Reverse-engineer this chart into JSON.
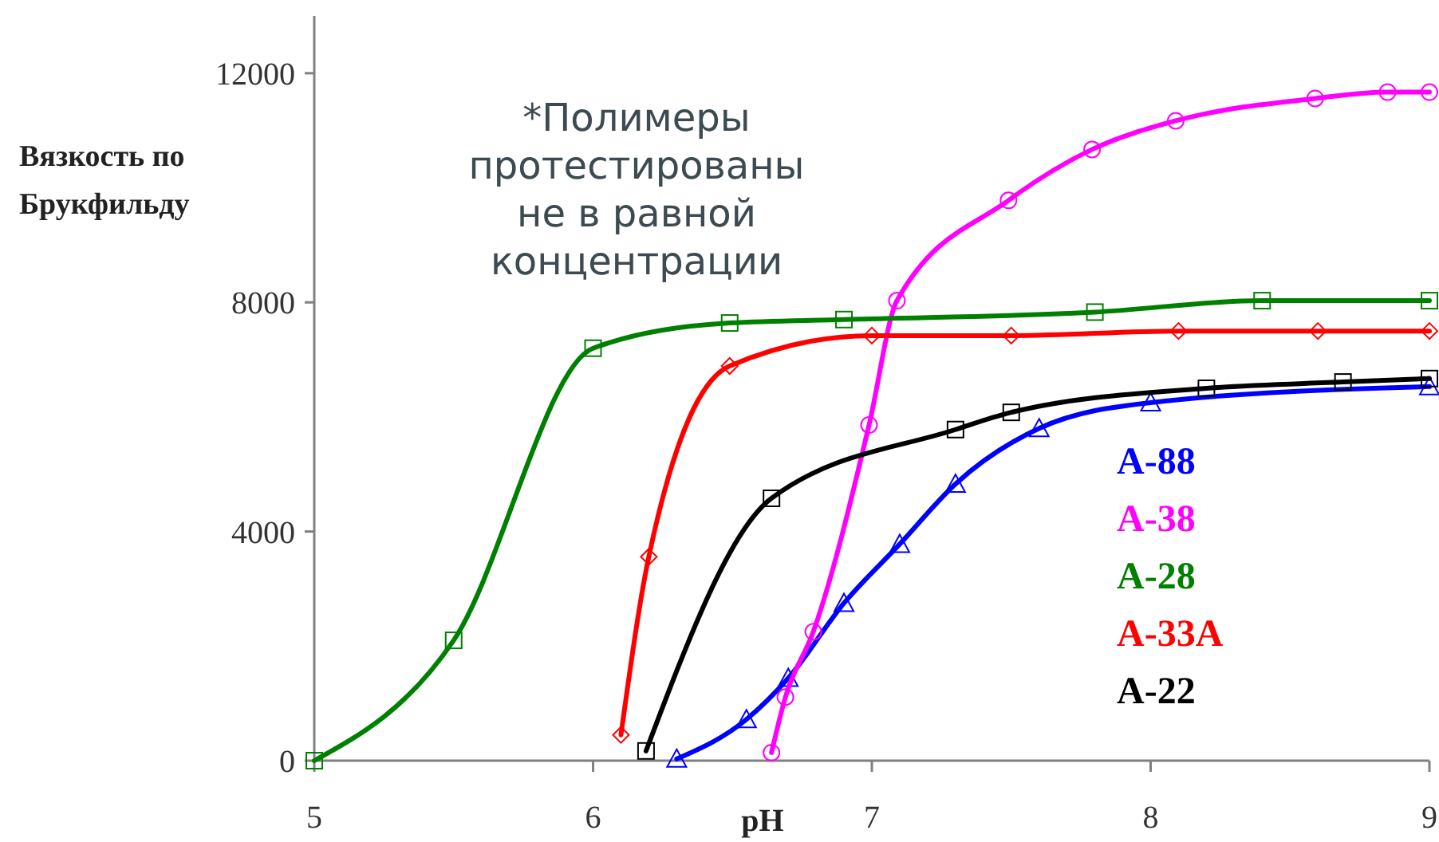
{
  "chart_data": {
    "type": "line",
    "xlabel": "pH",
    "ylabel": "Вязкость по Брукфильду",
    "annotations": [
      "*Полимеры протестированы не в равной концентрации"
    ],
    "xlim": [
      5,
      9
    ],
    "xticks": [
      5,
      6,
      7,
      8,
      9
    ],
    "ylim": [
      0,
      13000
    ],
    "yticks": [
      0,
      4000,
      8000,
      12000
    ],
    "grid": false,
    "legend": "right",
    "line_style": "solid",
    "series": [
      {
        "name": "A-88",
        "color": "#0000ff",
        "marker": "triangle",
        "x": [
          6.3,
          6.55,
          6.7,
          6.9,
          7.1,
          7.3,
          7.6,
          8.0,
          9.0
        ],
        "values": [
          30,
          720,
          1440,
          2750,
          3780,
          4830,
          5800,
          6250,
          6530
        ]
      },
      {
        "name": "A-38",
        "color": "#ff00ff",
        "marker": "circle",
        "x": [
          6.64,
          6.69,
          6.79,
          6.99,
          7.09,
          7.49,
          7.79,
          8.09,
          8.59,
          8.85,
          9.0
        ],
        "values": [
          140,
          1110,
          2250,
          5860,
          8030,
          9780,
          10670,
          11170,
          11560,
          11670,
          11670
        ]
      },
      {
        "name": "A-28",
        "color": "#008000",
        "marker": "square",
        "x": [
          5.0,
          5.5,
          6.0,
          6.49,
          6.9,
          7.8,
          8.4,
          9.0
        ],
        "values": [
          0,
          2100,
          7200,
          7640,
          7700,
          7830,
          8030,
          8030
        ]
      },
      {
        "name": "A-33A",
        "color": "#ff0000",
        "marker": "diamond",
        "x": [
          6.1,
          6.2,
          6.49,
          7.0,
          7.5,
          8.1,
          8.6,
          9.0
        ],
        "values": [
          450,
          3560,
          6890,
          7420,
          7420,
          7500,
          7500,
          7500
        ]
      },
      {
        "name": "A-22",
        "color": "#000000",
        "marker": "square",
        "x": [
          6.19,
          6.64,
          7.3,
          7.5,
          8.2,
          8.69,
          9.0
        ],
        "values": [
          170,
          4580,
          5780,
          6080,
          6500,
          6610,
          6670
        ]
      }
    ]
  }
}
